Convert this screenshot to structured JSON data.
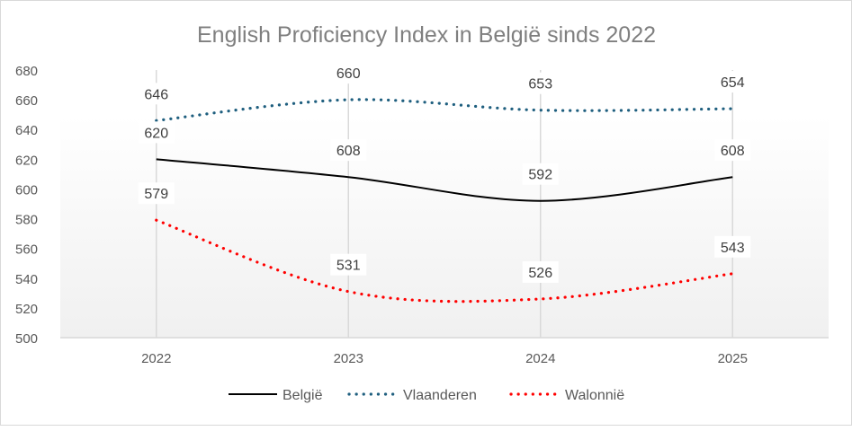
{
  "chart_data": {
    "type": "line",
    "title": "English Proficiency Index in België sinds 2022",
    "xlabel": "",
    "ylabel": "",
    "categories": [
      "2022",
      "2023",
      "2024",
      "2025"
    ],
    "ylim": [
      500,
      680
    ],
    "yticks": [
      "500",
      "520",
      "540",
      "560",
      "580",
      "600",
      "620",
      "640",
      "660",
      "680"
    ],
    "grid": "vertical",
    "smoothed": true,
    "legend": "bottom",
    "series": [
      {
        "name": "België",
        "values": [
          620,
          608,
          592,
          608
        ],
        "color": "#000000",
        "style": "solid"
      },
      {
        "name": "Vlaanderen",
        "values": [
          646,
          660,
          653,
          654
        ],
        "color": "#1f5f7f",
        "style": "dotted"
      },
      {
        "name": "Walonnië",
        "values": [
          579,
          531,
          526,
          543
        ],
        "color": "#ff0000",
        "style": "dotted"
      }
    ]
  }
}
